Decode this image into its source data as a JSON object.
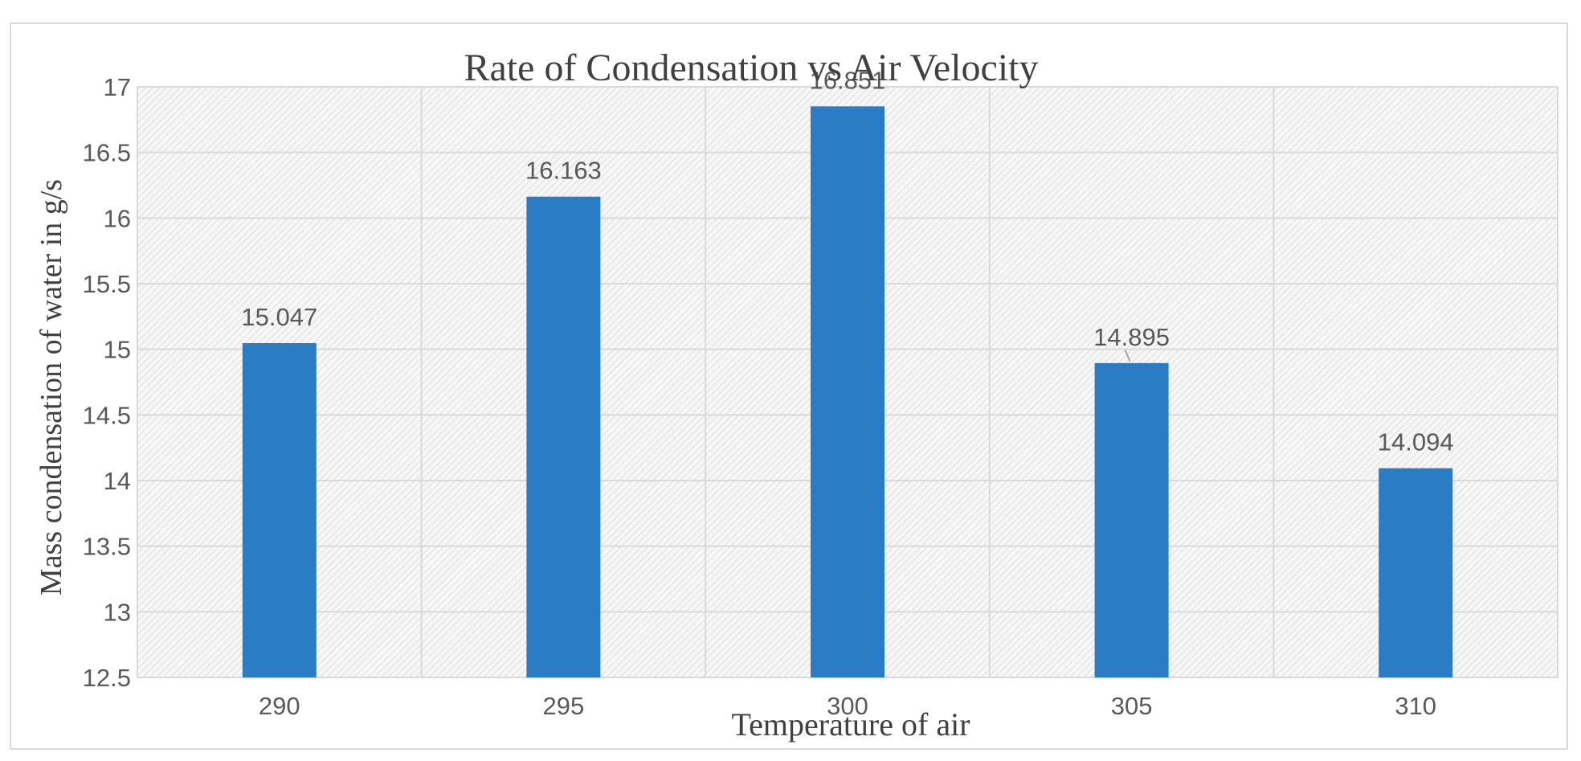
{
  "chart_data": {
    "type": "bar",
    "title": "Rate of Condensation vs Air Velocity",
    "xlabel": "Temperature of air",
    "ylabel": "Mass condensation of water in g/s",
    "categories": [
      "290",
      "295",
      "300",
      "305",
      "310"
    ],
    "values": [
      15.047,
      16.163,
      16.851,
      14.895,
      14.094
    ],
    "value_labels": [
      "15.047",
      "16.163",
      "16.851",
      "14.895",
      "14.094"
    ],
    "yticks": [
      12.5,
      13,
      13.5,
      14,
      14.5,
      15,
      15.5,
      16,
      16.5,
      17
    ],
    "ytick_labels": [
      "12.5",
      "13",
      "13.5",
      "14",
      "14.5",
      "15",
      "15.5",
      "16",
      "16.5",
      "17"
    ],
    "ylim": [
      12.5,
      17
    ],
    "grid": true,
    "bar_color": "#2a7dc4",
    "grid_color": "#d9d9d9",
    "text_color": "#595959",
    "title_color": "#404040"
  }
}
